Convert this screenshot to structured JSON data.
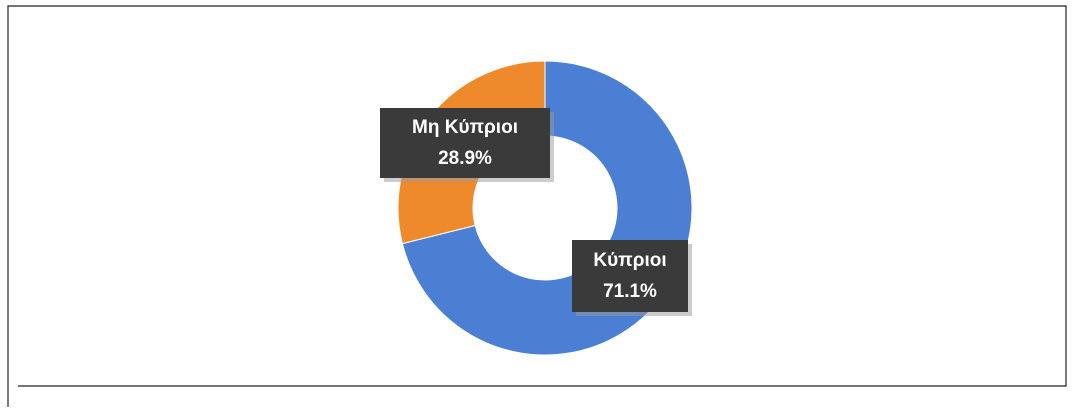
{
  "chart_data": {
    "type": "donut",
    "categories": [
      "Κύπριοι",
      "Μη Κύπριοι"
    ],
    "values": [
      71.1,
      28.9
    ],
    "value_labels": [
      "71.1%",
      "28.9%"
    ],
    "colors": [
      "#4a7fd4",
      "#ee8a2c"
    ]
  }
}
